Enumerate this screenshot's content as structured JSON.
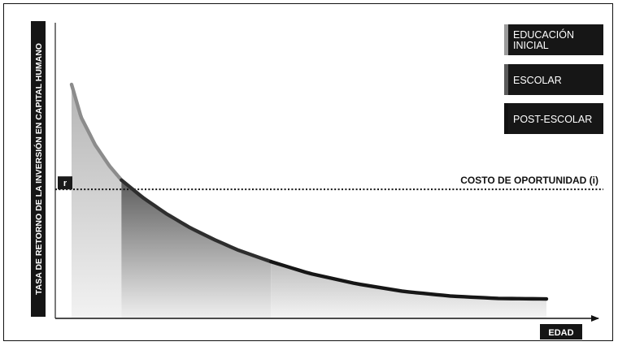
{
  "chart_data": {
    "type": "area",
    "ylabel": "TASA DE RETORNO DE LA INVERSIÓN EN CAPITAL HUMANO",
    "xlabel": "EDAD",
    "y_marker_label": "r",
    "reference_line": {
      "label": "COSTO DE OPORTUNIDAD (i)",
      "y": 0.55
    },
    "legend": {
      "placement": "top-right",
      "items": [
        {
          "label_lines": [
            "EDUCACIÓN",
            "INICIAL"
          ],
          "accent": "#9a9a9a"
        },
        {
          "label_lines": [
            "ESCOLAR"
          ],
          "accent": "#5a5a5a"
        },
        {
          "label_lines": [
            "POST-ESCOLAR"
          ],
          "accent": "#111111"
        }
      ]
    },
    "segments": [
      {
        "name": "EDUCACIÓN INICIAL",
        "x_start": 0.0,
        "x_end": 0.105,
        "fill_top": "#b4b4b4",
        "fill_bottom": "#f2f2f2",
        "line_color": "#8c8c8c"
      },
      {
        "name": "ESCOLAR",
        "x_start": 0.105,
        "x_end": 0.42,
        "fill_top": "#5c5c5c",
        "fill_bottom": "#eeeeee",
        "line_color": "#2e2e2e"
      },
      {
        "name": "POST-ESCOLAR",
        "x_start": 0.42,
        "x_end": 1.0,
        "fill_top": "#bdbdbd",
        "fill_bottom": "#f4f4f4",
        "line_color": "#161616"
      }
    ],
    "curve": {
      "x": [
        0.0,
        0.02,
        0.05,
        0.08,
        0.105,
        0.15,
        0.2,
        0.25,
        0.3,
        0.35,
        0.42,
        0.5,
        0.6,
        0.7,
        0.8,
        0.9,
        1.0
      ],
      "y": [
        1.0,
        0.86,
        0.74,
        0.65,
        0.59,
        0.515,
        0.445,
        0.385,
        0.335,
        0.29,
        0.24,
        0.19,
        0.145,
        0.112,
        0.092,
        0.082,
        0.08
      ]
    },
    "ylim": [
      0,
      1
    ],
    "xlim": [
      0,
      1
    ],
    "grid": false
  }
}
